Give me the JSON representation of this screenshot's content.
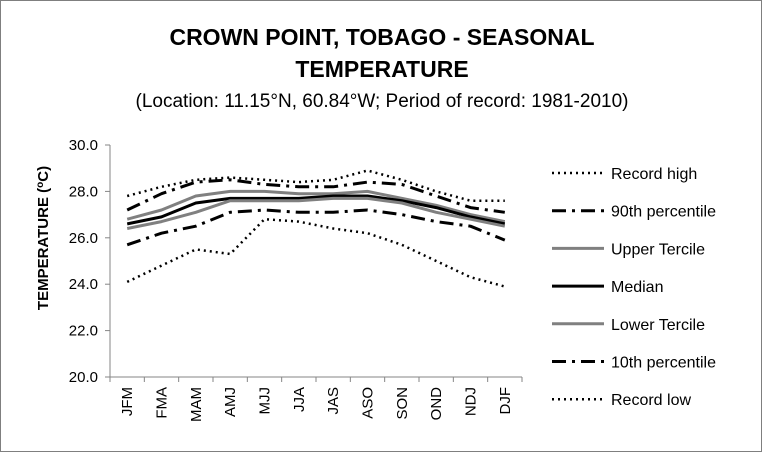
{
  "chart_data": {
    "type": "line",
    "title": [
      "CROWN POINT, TOBAGO - SEASONAL",
      "TEMPERATURE"
    ],
    "subtitle": "(Location: 11.15°N, 60.84°W; Period of record: 1981-2010)",
    "ylabel": "TEMPERATURE (°C)",
    "ylabel_parts": {
      "pre": "TEMPERATURE (",
      "sup": "o",
      "post": "C)"
    },
    "xlabel": "",
    "ylim": [
      20,
      30
    ],
    "yticks": [
      "20.0",
      "22.0",
      "24.0",
      "26.0",
      "28.0",
      "30.0"
    ],
    "grid": false,
    "legend_position": "right",
    "categories": [
      "JFM",
      "FMA",
      "MAM",
      "AMJ",
      "MJJ",
      "JJA",
      "JAS",
      "ASO",
      "SON",
      "OND",
      "NDJ",
      "DJF"
    ],
    "series": [
      {
        "name": "Record high",
        "style": "dotted",
        "color": "#000000",
        "width": 2.5,
        "values": [
          27.8,
          28.2,
          28.5,
          28.6,
          28.5,
          28.4,
          28.5,
          28.9,
          28.5,
          28.0,
          27.6,
          27.6
        ]
      },
      {
        "name": "90th percentile",
        "style": "dashdot",
        "color": "#000000",
        "width": 3,
        "values": [
          27.2,
          27.9,
          28.4,
          28.5,
          28.3,
          28.2,
          28.2,
          28.4,
          28.3,
          27.8,
          27.3,
          27.1
        ]
      },
      {
        "name": "Upper Tercile",
        "style": "solid",
        "color": "#808080",
        "width": 3,
        "values": [
          26.8,
          27.2,
          27.8,
          28.0,
          28.0,
          27.9,
          27.9,
          28.0,
          27.7,
          27.4,
          27.0,
          26.7
        ]
      },
      {
        "name": "Median",
        "style": "solid",
        "color": "#000000",
        "width": 3,
        "values": [
          26.6,
          26.9,
          27.5,
          27.7,
          27.7,
          27.7,
          27.8,
          27.8,
          27.6,
          27.3,
          26.9,
          26.6
        ]
      },
      {
        "name": "Lower Tercile",
        "style": "solid",
        "color": "#808080",
        "width": 3,
        "values": [
          26.4,
          26.7,
          27.1,
          27.6,
          27.6,
          27.6,
          27.7,
          27.7,
          27.5,
          27.1,
          26.8,
          26.5
        ]
      },
      {
        "name": "10th percentile",
        "style": "dashdot",
        "color": "#000000",
        "width": 3,
        "values": [
          25.7,
          26.2,
          26.5,
          27.1,
          27.2,
          27.1,
          27.1,
          27.2,
          27.0,
          26.7,
          26.5,
          25.9
        ]
      },
      {
        "name": "Record low",
        "style": "dotted",
        "color": "#000000",
        "width": 2.5,
        "values": [
          24.1,
          24.8,
          25.5,
          25.3,
          26.8,
          26.7,
          26.4,
          26.2,
          25.7,
          25.0,
          24.3,
          23.9
        ]
      }
    ]
  }
}
